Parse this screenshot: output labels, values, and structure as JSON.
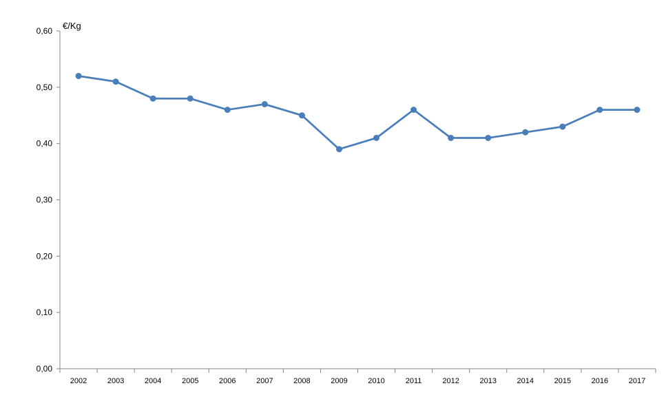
{
  "chart_data": {
    "type": "line",
    "title": "",
    "xlabel": "",
    "ylabel": "€/Kg",
    "ylim": [
      0,
      0.6
    ],
    "yticks": [
      "0,00",
      "0,10",
      "0,20",
      "0,30",
      "0,40",
      "0,50",
      "0,60"
    ],
    "categories": [
      "2002",
      "2003",
      "2004",
      "2005",
      "2006",
      "2007",
      "2008",
      "2009",
      "2010",
      "2011",
      "2012",
      "2013",
      "2014",
      "2015",
      "2016",
      "2017"
    ],
    "series": [
      {
        "name": "€/Kg",
        "color": "#4a7ebb",
        "values": [
          0.52,
          0.51,
          0.48,
          0.48,
          0.46,
          0.47,
          0.45,
          0.39,
          0.41,
          0.46,
          0.41,
          0.41,
          0.42,
          0.43,
          0.46,
          0.46
        ]
      }
    ],
    "grid": false,
    "legend": "none"
  }
}
